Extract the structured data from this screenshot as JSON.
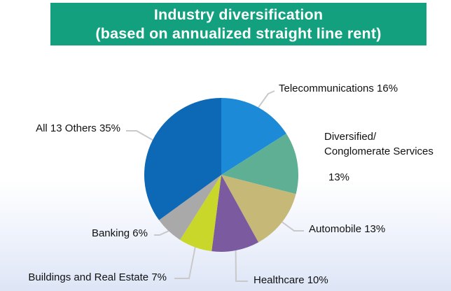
{
  "title": {
    "line1": "Industry diversification",
    "line2": "(based on annualized straight line rent)"
  },
  "chart_data": {
    "type": "pie",
    "title": "Industry diversification (based on annualized straight line rent)",
    "legend": "none (labels on leader lines)",
    "slices": [
      {
        "label": "Telecommunications",
        "value": 16,
        "label_text": "Telecommunications 16%",
        "color": "#1c8ad6"
      },
      {
        "label": "Diversified/ Conglomerate Services",
        "value": 13,
        "label_lines": [
          "Diversified/",
          "Conglomerate Services",
          "13%"
        ],
        "color": "#5faf94"
      },
      {
        "label": "Automobile",
        "value": 13,
        "label_text": "Automobile 13%",
        "color": "#c6b978"
      },
      {
        "label": "Healthcare",
        "value": 10,
        "label_text": "Healthcare 10%",
        "color": "#7b5aa0"
      },
      {
        "label": "Buildings and Real Estate",
        "value": 7,
        "label_text": "Buildings and Real Estate 7%",
        "color": "#c8d72a"
      },
      {
        "label": "Banking",
        "value": 6,
        "label_text": "Banking 6%",
        "color": "#a9a9a9"
      },
      {
        "label": "All 13 Others",
        "value": 35,
        "label_text": "All 13 Others 35%",
        "color": "#0d68b5"
      }
    ]
  }
}
